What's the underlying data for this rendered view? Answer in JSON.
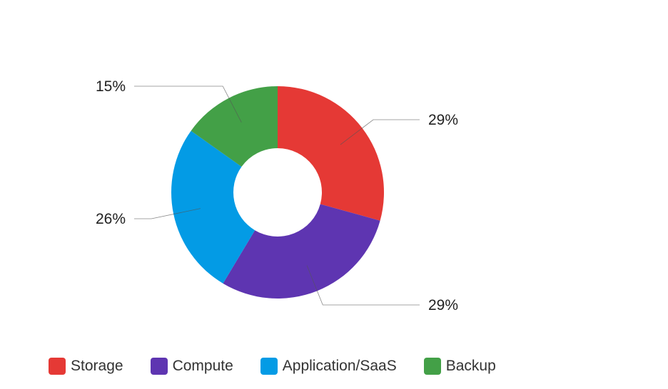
{
  "chart_data": {
    "type": "pie",
    "variant": "donut",
    "slices": [
      {
        "name": "Storage",
        "value": 29,
        "label": "29%",
        "color": "#e53935"
      },
      {
        "name": "Compute",
        "value": 29,
        "label": "29%",
        "color": "#5e35b1"
      },
      {
        "name": "Application/SaaS",
        "value": 26,
        "label": "26%",
        "color": "#039be5"
      },
      {
        "name": "Backup",
        "value": 15,
        "label": "15%",
        "color": "#43a047"
      }
    ],
    "legend_position": "bottom-left"
  }
}
